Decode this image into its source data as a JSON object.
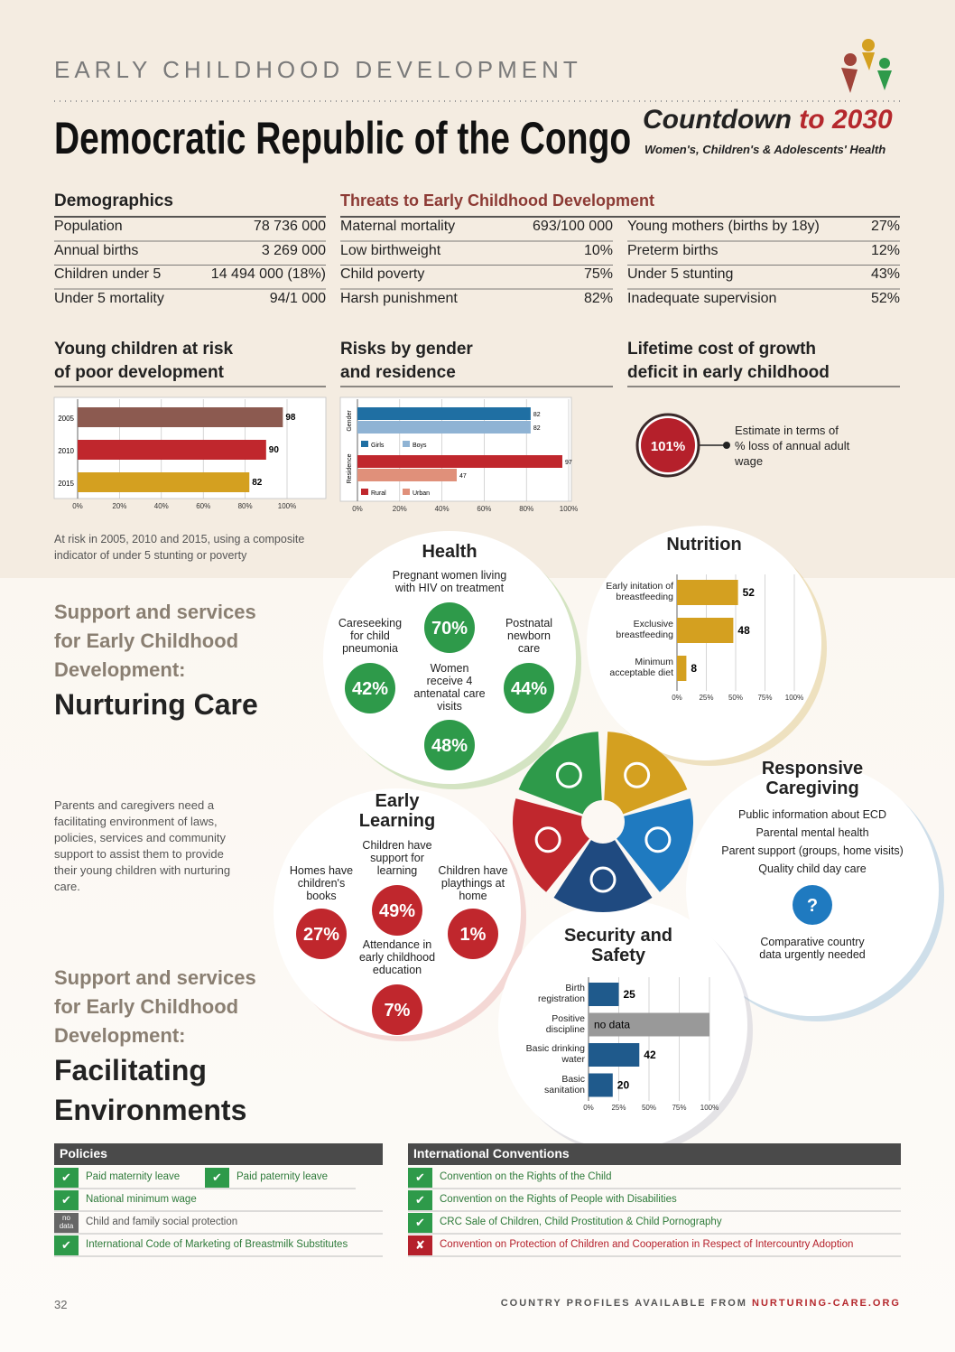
{
  "header": {
    "section": "EARLY CHILDHOOD DEVELOPMENT",
    "country": "Democratic Republic of the Congo",
    "brand": "Countdown",
    "brand_to": "to 2030",
    "brand_sub": "Women's, Children's & Adolescents' Health"
  },
  "demographics": {
    "title": "Demographics",
    "rows": [
      [
        "Population",
        "78 736 000"
      ],
      [
        "Annual births",
        "3 269 000"
      ],
      [
        "Children under 5",
        "14 494 000 (18%)"
      ],
      [
        "Under 5 mortality",
        "94/1 000"
      ]
    ]
  },
  "threats": {
    "title": "Threats to Early Childhood Development",
    "left": [
      [
        "Maternal mortality",
        "693/100 000"
      ],
      [
        "Low birthweight",
        "10%"
      ],
      [
        "Child poverty",
        "75%"
      ],
      [
        "Harsh punishment",
        "82%"
      ]
    ],
    "right": [
      [
        "Young mothers (births by 18y)",
        "27%"
      ],
      [
        "Preterm births",
        "12%"
      ],
      [
        "Under 5 stunting",
        "43%"
      ],
      [
        "Inadequate supervision",
        "52%"
      ]
    ]
  },
  "risk_chart": {
    "type": "bar",
    "title": [
      "Young children at risk",
      "of poor development"
    ],
    "categories": [
      "2005",
      "2010",
      "2015"
    ],
    "values": [
      98,
      90,
      82
    ],
    "colors": [
      "#8c5a50",
      "#c0272d",
      "#d4a020"
    ],
    "xlim": [
      0,
      100
    ],
    "xticks": [
      {
        "value": 0,
        "label": "0%"
      },
      {
        "value": 20,
        "label": "20%"
      },
      {
        "value": 40,
        "label": "40%"
      },
      {
        "value": 60,
        "label": "60%"
      },
      {
        "value": 80,
        "label": "80%"
      },
      {
        "value": 100,
        "label": "100%"
      }
    ],
    "grid": true,
    "note": "At risk in 2005, 2010 and 2015, using a composite indicator of under 5 stunting or poverty"
  },
  "gender_chart": {
    "type": "bar",
    "title": [
      "Risks by gender",
      "and residence"
    ],
    "groups": [
      {
        "label": "Gender",
        "series": [
          {
            "name": "Girls",
            "color": "#1f6fa3",
            "value": 82
          },
          {
            "name": "Boys",
            "color": "#8fb3d4",
            "value": 82
          }
        ]
      },
      {
        "label": "Residence",
        "series": [
          {
            "name": "Rural",
            "color": "#c0272d",
            "value": 97
          },
          {
            "name": "Urban",
            "color": "#e0907a",
            "value": 47
          }
        ]
      }
    ],
    "xlim": [
      0,
      100
    ],
    "xticks": [
      {
        "value": 0,
        "label": "0%"
      },
      {
        "value": 20,
        "label": "20%"
      },
      {
        "value": 40,
        "label": "40%"
      },
      {
        "value": 60,
        "label": "60%"
      },
      {
        "value": 80,
        "label": "80%"
      },
      {
        "value": 100,
        "label": "100%"
      }
    ],
    "grid": true
  },
  "lifetime_cost": {
    "title": [
      "Lifetime cost of growth",
      "deficit in early childhood"
    ],
    "value": 101,
    "value_label": "101%",
    "text": "Estimate in terms of % loss of annual adult wage"
  },
  "health": {
    "title": "Health",
    "items": [
      {
        "label": "Pregnant women living with HIV on treatment",
        "value": 70,
        "value_label": "70%"
      },
      {
        "label": "Careseeking for child pneumonia",
        "value": 42,
        "value_label": "42%"
      },
      {
        "label": "Postnatal newborn care",
        "value": 44,
        "value_label": "44%"
      },
      {
        "label": "Women receive 4 antenatal care visits",
        "value": 48,
        "value_label": "48%"
      }
    ]
  },
  "nutrition": {
    "type": "bar",
    "title": "Nutrition",
    "categories": [
      "Early initation of breastfeeding",
      "Exclusive breastfeeding",
      "Minimum acceptable diet"
    ],
    "values": [
      52,
      48,
      8
    ],
    "color": "#d4a020",
    "xlim": [
      0,
      100
    ],
    "xticks": [
      {
        "value": 0,
        "label": "0%"
      },
      {
        "value": 25,
        "label": "25%"
      },
      {
        "value": 50,
        "label": "50%"
      },
      {
        "value": 75,
        "label": "75%"
      },
      {
        "value": 100,
        "label": "100%"
      }
    ],
    "grid": true
  },
  "responsive": {
    "title": "Responsive Caregiving",
    "items": [
      "Public information about ECD",
      "Parental mental health",
      "Parent support (groups, home visits)",
      "Quality child day care"
    ],
    "symbol": "?",
    "note": "Comparative country data urgently needed"
  },
  "learning": {
    "title": "Early Learning",
    "items": [
      {
        "label": "Children have support for learning",
        "value": 49,
        "value_label": "49%"
      },
      {
        "label": "Homes have children's books",
        "value": 27,
        "value_label": "27%"
      },
      {
        "label": "Children have playthings at home",
        "value": 1,
        "value_label": "1%"
      },
      {
        "label": "Attendance in early childhood education",
        "value": 7,
        "value_label": "7%"
      }
    ]
  },
  "security": {
    "type": "bar",
    "title": "Security and Safety",
    "categories": [
      "Birth registration",
      "Positive discipline",
      "Basic drinking water",
      "Basic sanitation"
    ],
    "values": [
      25,
      null,
      42,
      20
    ],
    "value_labels": [
      null,
      "no data",
      null,
      null
    ],
    "color": "#1f5a8c",
    "xlim": [
      0,
      100
    ],
    "xticks": [
      {
        "value": 0,
        "label": "0%"
      },
      {
        "value": 25,
        "label": "25%"
      },
      {
        "value": 50,
        "label": "50%"
      },
      {
        "value": 75,
        "label": "75%"
      },
      {
        "value": 100,
        "label": "100%"
      }
    ],
    "grid": true
  },
  "support": [
    {
      "heading": "Support and services for Early Childhood Development:",
      "title": "Nurturing Care",
      "text": "Parents and caregivers need a facilitating environment of laws, policies, services and community support to assist them to provide their young children with nurturing care."
    },
    {
      "heading": "Support and services for Early Childhood Development:",
      "title": "Facilitating Environments"
    }
  ],
  "policies": {
    "title": "Policies",
    "rows": [
      [
        {
          "status": "✔",
          "label": "Paid maternity leave"
        },
        {
          "status": "✔",
          "label": "Paid paternity leave"
        }
      ],
      [
        {
          "status": "✔",
          "label": "National minimum wage"
        }
      ],
      [
        {
          "status": "no data",
          "label": "Child and family social protection"
        }
      ],
      [
        {
          "status": "✔",
          "label": "International Code of Marketing of Breastmilk Substitutes"
        }
      ]
    ]
  },
  "conventions": {
    "title": "International Conventions",
    "rows": [
      {
        "status": "✔",
        "label": "Convention on the Rights of the Child"
      },
      {
        "status": "✔",
        "label": "Convention on the Rights of People with Disabilities"
      },
      {
        "status": "✔",
        "label": "CRC Sale of Children, Child Prostitution & Child Pornography"
      },
      {
        "status": "✘",
        "label": "Convention on Protection of Children and Cooperation in Respect of Intercountry Adoption"
      }
    ]
  },
  "footer": {
    "page": "32",
    "text": "COUNTRY PROFILES AVAILABLE FROM",
    "url": "NURTURING-CARE.ORG"
  }
}
